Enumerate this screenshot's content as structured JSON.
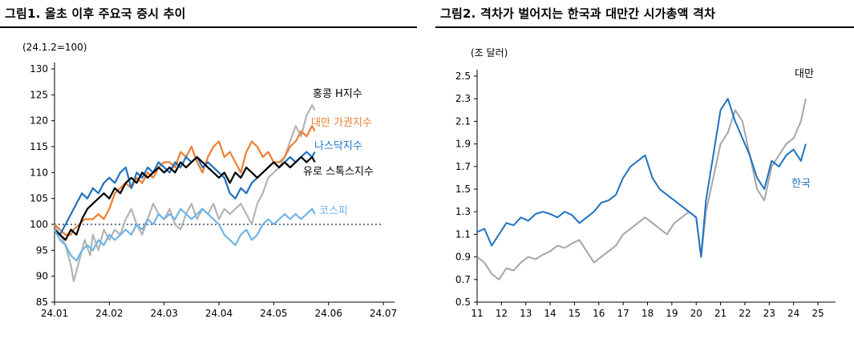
{
  "charts": [
    {
      "title": "그림1.  올초 이후 주요국 증시 추이",
      "unit": "(24.1.2=100)",
      "chart_data": {
        "type": "line",
        "x_ticks": [
          "24.01",
          "24.02",
          "24.03",
          "24.04",
          "24.05",
          "24.06",
          "24.07"
        ],
        "y_ticks": [
          "130",
          "125",
          "120",
          "115",
          "110",
          "105",
          "100",
          "95",
          "90",
          "85"
        ],
        "ylim": [
          85,
          130
        ],
        "xlim": [
          0,
          6
        ],
        "reference_line": 100,
        "series": [
          {
            "name": "홍콩 H지수",
            "color": "#b4b4b4",
            "x": [
              0,
              0.1,
              0.2,
              0.3,
              0.35,
              0.45,
              0.55,
              0.65,
              0.7,
              0.8,
              0.9,
              1.0,
              1.1,
              1.2,
              1.3,
              1.4,
              1.5,
              1.6,
              1.7,
              1.8,
              1.9,
              2.0,
              2.1,
              2.2,
              2.3,
              2.4,
              2.5,
              2.6,
              2.7,
              2.8,
              2.9,
              3.0,
              3.1,
              3.2,
              3.3,
              3.4,
              3.5,
              3.6,
              3.7,
              3.8,
              3.9,
              4.0,
              4.1,
              4.2,
              4.3,
              4.4,
              4.5,
              4.6,
              4.7,
              4.75
            ],
            "y": [
              100,
              98,
              96,
              92,
              89,
              93,
              97,
              94,
              98,
              95,
              99,
              97,
              99,
              98,
              101,
              103,
              100,
              98,
              101,
              104,
              102,
              101,
              103,
              100,
              99,
              102,
              104,
              101,
              103,
              102,
              104,
              101,
              103,
              102,
              103,
              104,
              102,
              100,
              104,
              106,
              109,
              110,
              111,
              113,
              116,
              119,
              117,
              121,
              123,
              122
            ]
          },
          {
            "name": "대만 가권지수",
            "color": "#ee7d31",
            "x": [
              0,
              0.1,
              0.2,
              0.3,
              0.35,
              0.45,
              0.55,
              0.6,
              0.7,
              0.8,
              0.9,
              1.0,
              1.1,
              1.2,
              1.3,
              1.4,
              1.5,
              1.6,
              1.7,
              1.8,
              1.9,
              2.0,
              2.1,
              2.2,
              2.3,
              2.4,
              2.5,
              2.6,
              2.7,
              2.8,
              2.9,
              3.0,
              3.1,
              3.2,
              3.3,
              3.4,
              3.5,
              3.6,
              3.7,
              3.8,
              3.9,
              4.0,
              4.1,
              4.2,
              4.3,
              4.4,
              4.5,
              4.6,
              4.7,
              4.75
            ],
            "y": [
              100,
              99,
              98,
              98,
              99,
              100,
              101,
              101,
              101,
              102,
              101,
              103,
              106,
              107,
              108,
              107,
              109,
              108,
              110,
              109,
              111,
              112,
              112,
              111,
              114,
              113,
              115,
              112,
              110,
              113,
              115,
              116,
              113,
              114,
              112,
              110,
              114,
              116,
              115,
              113,
              114,
              112,
              112,
              113,
              115,
              116,
              118,
              117,
              119,
              118
            ]
          },
          {
            "name": "나스닥지수",
            "color": "#1f73c0",
            "x": [
              0,
              0.1,
              0.2,
              0.3,
              0.4,
              0.5,
              0.6,
              0.7,
              0.8,
              0.9,
              1.0,
              1.1,
              1.2,
              1.3,
              1.4,
              1.5,
              1.6,
              1.7,
              1.8,
              1.9,
              2.0,
              2.1,
              2.2,
              2.3,
              2.4,
              2.5,
              2.6,
              2.7,
              2.8,
              2.9,
              3.0,
              3.1,
              3.2,
              3.3,
              3.4,
              3.5,
              3.6,
              3.7,
              3.8,
              3.9,
              4.0,
              4.1,
              4.2,
              4.3,
              4.4,
              4.5,
              4.6,
              4.7,
              4.75
            ],
            "y": [
              99,
              98,
              100,
              102,
              104,
              106,
              105,
              107,
              106,
              108,
              109,
              108,
              110,
              111,
              107,
              110,
              109,
              111,
              110,
              112,
              111,
              110,
              112,
              111,
              113,
              112,
              113,
              111,
              112,
              111,
              110,
              109,
              106,
              105,
              107,
              106,
              108,
              109,
              110,
              111,
              112,
              111,
              112,
              113,
              112,
              113,
              114,
              113,
              114
            ]
          },
          {
            "name": "유로 스톡스지수",
            "color": "#000000",
            "x": [
              0,
              0.1,
              0.2,
              0.3,
              0.4,
              0.5,
              0.6,
              0.7,
              0.8,
              0.9,
              1.0,
              1.1,
              1.2,
              1.3,
              1.4,
              1.5,
              1.6,
              1.7,
              1.8,
              1.9,
              2.0,
              2.1,
              2.2,
              2.3,
              2.4,
              2.5,
              2.6,
              2.7,
              2.8,
              2.9,
              3.0,
              3.1,
              3.2,
              3.3,
              3.4,
              3.5,
              3.6,
              3.7,
              3.8,
              3.9,
              4.0,
              4.1,
              4.2,
              4.3,
              4.4,
              4.5,
              4.6,
              4.7,
              4.75
            ],
            "y": [
              99,
              98,
              97,
              99,
              98,
              101,
              103,
              104,
              105,
              106,
              105,
              107,
              106,
              108,
              109,
              108,
              110,
              109,
              110,
              111,
              110,
              111,
              110,
              112,
              111,
              112,
              113,
              112,
              111,
              110,
              109,
              110,
              108,
              110,
              109,
              111,
              110,
              109,
              110,
              111,
              112,
              111,
              112,
              111,
              112,
              113,
              112,
              113,
              112
            ]
          },
          {
            "name": "코스피",
            "color": "#6fb4e6",
            "x": [
              0,
              0.1,
              0.2,
              0.3,
              0.4,
              0.5,
              0.6,
              0.7,
              0.8,
              0.9,
              1.0,
              1.1,
              1.2,
              1.3,
              1.4,
              1.5,
              1.6,
              1.7,
              1.8,
              1.9,
              2.0,
              2.1,
              2.2,
              2.3,
              2.4,
              2.5,
              2.6,
              2.7,
              2.8,
              2.9,
              3.0,
              3.1,
              3.2,
              3.3,
              3.4,
              3.5,
              3.6,
              3.7,
              3.8,
              3.9,
              4.0,
              4.1,
              4.2,
              4.3,
              4.4,
              4.5,
              4.6,
              4.7,
              4.75
            ],
            "y": [
              99,
              97,
              96,
              94,
              93,
              95,
              96,
              95,
              97,
              96,
              98,
              97,
              98,
              99,
              98,
              100,
              99,
              101,
              100,
              102,
              101,
              102,
              101,
              103,
              102,
              101,
              102,
              103,
              102,
              101,
              100,
              98,
              97,
              96,
              98,
              99,
              97,
              98,
              100,
              101,
              100,
              101,
              102,
              101,
              102,
              101,
              102,
              103,
              102
            ]
          }
        ]
      }
    },
    {
      "title": "그림2.  격차가 벌어지는 한국과 대만간 시가총액 격차",
      "unit": "(조 달러)",
      "chart_data": {
        "type": "line",
        "x_ticks": [
          "11",
          "12",
          "13",
          "14",
          "15",
          "16",
          "17",
          "18",
          "19",
          "20",
          "21",
          "22",
          "23",
          "24",
          "25"
        ],
        "y_ticks": [
          "2.5",
          "2.3",
          "2.1",
          "1.9",
          "1.7",
          "1.5",
          "1.3",
          "1.1",
          "0.9",
          "0.7",
          "0.5"
        ],
        "ylim": [
          0.5,
          2.5
        ],
        "xlim": [
          11,
          25
        ],
        "series": [
          {
            "name": "대만",
            "color": "#a6a6a6",
            "x": [
              11,
              11.3,
              11.6,
              11.9,
              12.2,
              12.5,
              12.8,
              13.1,
              13.4,
              13.7,
              14.0,
              14.3,
              14.6,
              14.9,
              15.2,
              15.5,
              15.8,
              16.1,
              16.4,
              16.7,
              17.0,
              17.3,
              17.6,
              17.9,
              18.2,
              18.5,
              18.8,
              19.1,
              19.4,
              19.7,
              20.0,
              20.2,
              20.4,
              20.7,
              21.0,
              21.3,
              21.6,
              21.9,
              22.2,
              22.5,
              22.8,
              23.1,
              23.4,
              23.7,
              24.0,
              24.3,
              24.5
            ],
            "y": [
              0.9,
              0.85,
              0.75,
              0.7,
              0.8,
              0.78,
              0.85,
              0.9,
              0.88,
              0.92,
              0.95,
              1.0,
              0.98,
              1.02,
              1.05,
              0.95,
              0.85,
              0.9,
              0.95,
              1.0,
              1.1,
              1.15,
              1.2,
              1.25,
              1.2,
              1.15,
              1.1,
              1.2,
              1.25,
              1.3,
              1.25,
              0.9,
              1.3,
              1.6,
              1.9,
              2.0,
              2.2,
              2.1,
              1.8,
              1.5,
              1.4,
              1.7,
              1.8,
              1.9,
              1.95,
              2.1,
              2.3
            ]
          },
          {
            "name": "한국",
            "color": "#1f73c0",
            "x": [
              11,
              11.3,
              11.6,
              11.9,
              12.2,
              12.5,
              12.8,
              13.1,
              13.4,
              13.7,
              14.0,
              14.3,
              14.6,
              14.9,
              15.2,
              15.5,
              15.8,
              16.1,
              16.4,
              16.7,
              17.0,
              17.3,
              17.6,
              17.9,
              18.2,
              18.5,
              18.8,
              19.1,
              19.4,
              19.7,
              20.0,
              20.2,
              20.4,
              20.7,
              21.0,
              21.3,
              21.6,
              21.9,
              22.2,
              22.5,
              22.8,
              23.1,
              23.4,
              23.7,
              24.0,
              24.3,
              24.5
            ],
            "y": [
              1.12,
              1.15,
              1.0,
              1.1,
              1.2,
              1.18,
              1.25,
              1.22,
              1.28,
              1.3,
              1.28,
              1.25,
              1.3,
              1.27,
              1.2,
              1.25,
              1.3,
              1.38,
              1.4,
              1.45,
              1.6,
              1.7,
              1.75,
              1.8,
              1.6,
              1.5,
              1.45,
              1.4,
              1.35,
              1.3,
              1.25,
              0.9,
              1.4,
              1.8,
              2.2,
              2.3,
              2.1,
              1.95,
              1.8,
              1.6,
              1.5,
              1.75,
              1.7,
              1.8,
              1.85,
              1.75,
              1.9
            ]
          }
        ],
        "labels": [
          "대만",
          "한국"
        ]
      }
    }
  ]
}
